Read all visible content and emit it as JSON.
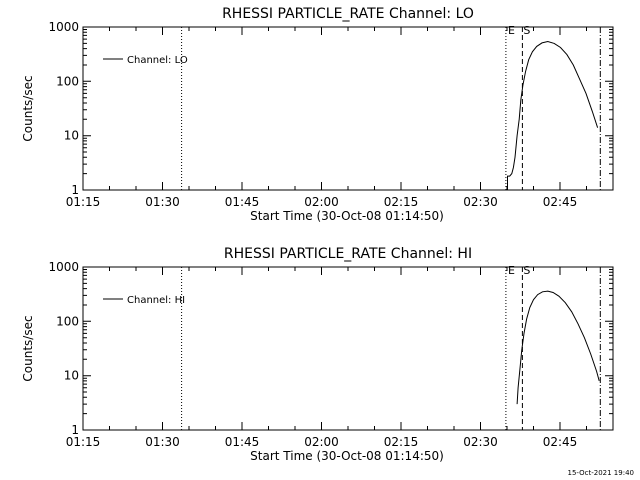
{
  "footer_timestamp": "15-Oct-2021 19:40",
  "chart_data": [
    {
      "type": "line",
      "title": "RHESSI PARTICLE_RATE Channel: LO",
      "xlabel": "Start Time (30-Oct-08 01:14:50)",
      "ylabel": "Counts/sec",
      "yscale": "log",
      "ylim": [
        1,
        1000
      ],
      "xlim_minutes": [
        0,
        100
      ],
      "x_tick_labels": [
        "01:15",
        "01:30",
        "01:45",
        "02:00",
        "02:15",
        "02:30",
        "02:45"
      ],
      "x_tick_minutes": [
        0,
        15,
        30,
        45,
        60,
        75,
        90
      ],
      "y_tick_labels": [
        "1",
        "10",
        "100",
        "1000"
      ],
      "y_tick_values": [
        1,
        10,
        100,
        1000
      ],
      "legend": "Channel: LO",
      "markers": [
        {
          "minute": 18.6,
          "style": "dotted",
          "label": ""
        },
        {
          "minute": 79.8,
          "style": "dotted",
          "label": "E"
        },
        {
          "minute": 82.9,
          "style": "dashed",
          "label": "S"
        },
        {
          "minute": 97.6,
          "style": "dashdot",
          "label": ""
        }
      ],
      "series": [
        {
          "name": "Channel: LO",
          "x_minutes": [
            80.1,
            80.1,
            80.5,
            80.9,
            81.2,
            81.5,
            81.9,
            82.3,
            82.6,
            83.0,
            83.5,
            84.1,
            84.8,
            85.6,
            86.6,
            87.7,
            88.9,
            90.1,
            91.3,
            92.5,
            93.7,
            94.9,
            96.1,
            97.1
          ],
          "values": [
            1,
            1.8,
            1.8,
            2.0,
            2.6,
            4.0,
            10,
            20,
            45,
            85,
            150,
            250,
            350,
            440,
            510,
            540,
            500,
            420,
            310,
            200,
            110,
            60,
            28,
            14
          ]
        }
      ]
    },
    {
      "type": "line",
      "title": "RHESSI PARTICLE_RATE Channel: HI",
      "xlabel": "Start Time (30-Oct-08 01:14:50)",
      "ylabel": "Counts/sec",
      "yscale": "log",
      "ylim": [
        1,
        1000
      ],
      "xlim_minutes": [
        0,
        100
      ],
      "x_tick_labels": [
        "01:15",
        "01:30",
        "01:45",
        "02:00",
        "02:15",
        "02:30",
        "02:45"
      ],
      "x_tick_minutes": [
        0,
        15,
        30,
        45,
        60,
        75,
        90
      ],
      "y_tick_labels": [
        "1",
        "10",
        "100",
        "1000"
      ],
      "y_tick_values": [
        1,
        10,
        100,
        1000
      ],
      "legend": "Channel: HI",
      "markers": [
        {
          "minute": 18.6,
          "style": "dotted",
          "label": ""
        },
        {
          "minute": 79.8,
          "style": "dotted",
          "label": "E"
        },
        {
          "minute": 82.9,
          "style": "dashed",
          "label": "S"
        },
        {
          "minute": 97.6,
          "style": "dashdot",
          "label": ""
        }
      ],
      "series": [
        {
          "name": "Channel: HI",
          "x_minutes": [
            81.9,
            82.1,
            82.4,
            82.8,
            83.2,
            83.7,
            84.3,
            85.0,
            85.8,
            86.7,
            87.7,
            88.7,
            89.8,
            91.0,
            92.2,
            93.4,
            94.6,
            95.8,
            96.9,
            97.4
          ],
          "values": [
            3,
            6,
            12,
            30,
            60,
            110,
            180,
            250,
            310,
            350,
            360,
            340,
            290,
            220,
            150,
            90,
            50,
            25,
            12,
            8
          ]
        }
      ]
    }
  ]
}
